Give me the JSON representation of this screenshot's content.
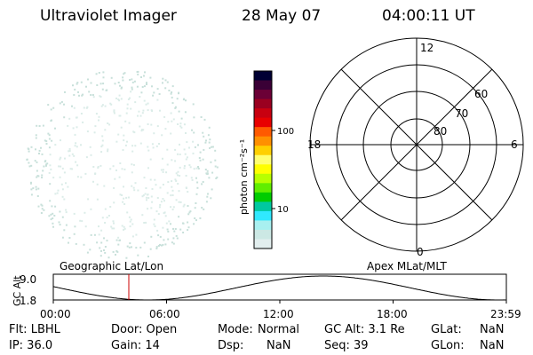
{
  "header": {
    "instrument": "Ultraviolet Imager",
    "date": "28 May 07",
    "time": "04:00:11 UT"
  },
  "colorbar": {
    "unit_label": "photon cm⁻²s⁻¹",
    "ticks": [
      "100",
      "10"
    ],
    "colors": [
      "#000033",
      "#3a0036",
      "#6b0036",
      "#9a0020",
      "#c80010",
      "#e80000",
      "#ff5a00",
      "#ff9000",
      "#ffd000",
      "#ffff70",
      "#ffff00",
      "#b8ff00",
      "#60ee00",
      "#00cc00",
      "#00c8a0",
      "#30e8ff",
      "#a8f0f0",
      "#cce8e4",
      "#e2eeee"
    ]
  },
  "polar": {
    "mlt_labels": [
      "12",
      "18",
      "6",
      "0"
    ],
    "lat_labels": [
      "60",
      "70",
      "80"
    ]
  },
  "timeline": {
    "ylabel": "GC Alt",
    "yticks": [
      "9.0",
      "1.8"
    ],
    "left_label": "Geographic Lat/Lon",
    "right_label": "Apex MLat/MLT",
    "xticks": [
      "00:00",
      "06:00",
      "12:00",
      "18:00",
      "23:59"
    ],
    "current_time_hours": 4.0
  },
  "info": {
    "filter": "Flt: LBHL",
    "ip": "IP: 36.0",
    "door": "Door: Open",
    "gain": "Gain: 14",
    "mode_label": "Mode:",
    "mode_value": "Normal",
    "dsp_label": "Dsp:",
    "dsp_value": "NaN",
    "gc_alt": "GC Alt: 3.1 Re",
    "seq": "Seq: 39",
    "glat_label": "GLat:",
    "glat_value": "NaN",
    "glon_label": "GLon:",
    "glon_value": "NaN"
  }
}
